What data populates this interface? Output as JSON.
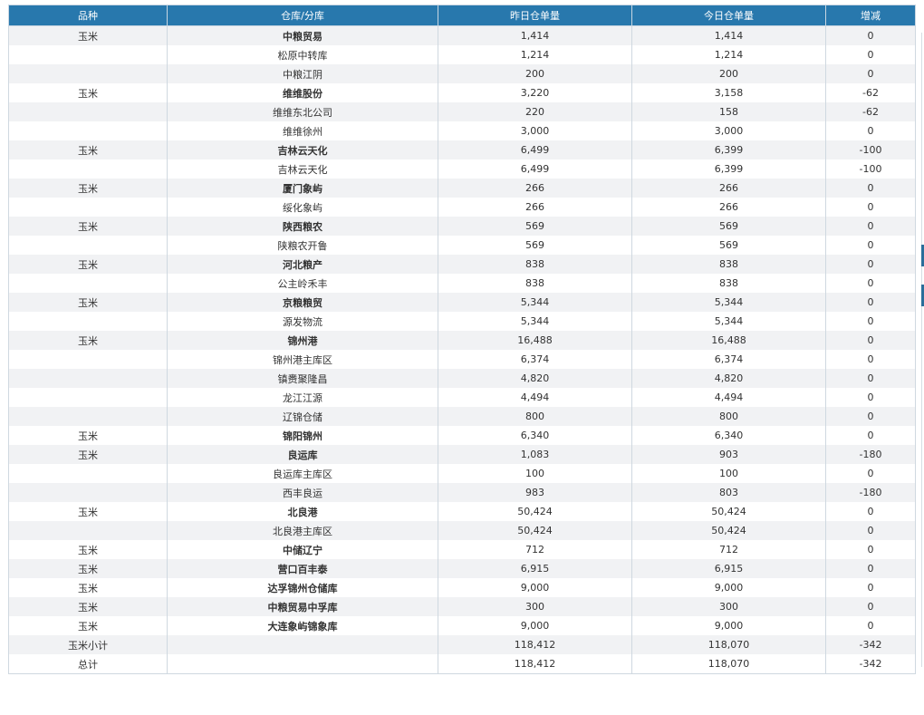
{
  "table": {
    "headers": [
      "品种",
      "仓库/分库",
      "昨日仓单量",
      "今日仓单量",
      "增减"
    ],
    "rows": [
      {
        "variety": "玉米",
        "warehouse": "中粮贸易",
        "yesterday": "1,414",
        "today": "1,414",
        "change": "0",
        "main": true
      },
      {
        "variety": "",
        "warehouse": "松原中转库",
        "yesterday": "1,214",
        "today": "1,214",
        "change": "0",
        "main": false
      },
      {
        "variety": "",
        "warehouse": "中粮江阴",
        "yesterday": "200",
        "today": "200",
        "change": "0",
        "main": false
      },
      {
        "variety": "玉米",
        "warehouse": "维维股份",
        "yesterday": "3,220",
        "today": "3,158",
        "change": "-62",
        "main": true
      },
      {
        "variety": "",
        "warehouse": "维维东北公司",
        "yesterday": "220",
        "today": "158",
        "change": "-62",
        "main": false
      },
      {
        "variety": "",
        "warehouse": "维维徐州",
        "yesterday": "3,000",
        "today": "3,000",
        "change": "0",
        "main": false
      },
      {
        "variety": "玉米",
        "warehouse": "吉林云天化",
        "yesterday": "6,499",
        "today": "6,399",
        "change": "-100",
        "main": true
      },
      {
        "variety": "",
        "warehouse": "吉林云天化",
        "yesterday": "6,499",
        "today": "6,399",
        "change": "-100",
        "main": false
      },
      {
        "variety": "玉米",
        "warehouse": "厦门象屿",
        "yesterday": "266",
        "today": "266",
        "change": "0",
        "main": true
      },
      {
        "variety": "",
        "warehouse": "绥化象屿",
        "yesterday": "266",
        "today": "266",
        "change": "0",
        "main": false
      },
      {
        "variety": "玉米",
        "warehouse": "陕西粮农",
        "yesterday": "569",
        "today": "569",
        "change": "0",
        "main": true
      },
      {
        "variety": "",
        "warehouse": "陕粮农开鲁",
        "yesterday": "569",
        "today": "569",
        "change": "0",
        "main": false
      },
      {
        "variety": "玉米",
        "warehouse": "河北粮产",
        "yesterday": "838",
        "today": "838",
        "change": "0",
        "main": true
      },
      {
        "variety": "",
        "warehouse": "公主岭禾丰",
        "yesterday": "838",
        "today": "838",
        "change": "0",
        "main": false
      },
      {
        "variety": "玉米",
        "warehouse": "京粮粮贸",
        "yesterday": "5,344",
        "today": "5,344",
        "change": "0",
        "main": true
      },
      {
        "variety": "",
        "warehouse": "源发物流",
        "yesterday": "5,344",
        "today": "5,344",
        "change": "0",
        "main": false
      },
      {
        "variety": "玉米",
        "warehouse": "锦州港",
        "yesterday": "16,488",
        "today": "16,488",
        "change": "0",
        "main": true
      },
      {
        "variety": "",
        "warehouse": "锦州港主库区",
        "yesterday": "6,374",
        "today": "6,374",
        "change": "0",
        "main": false
      },
      {
        "variety": "",
        "warehouse": "镇赉聚隆昌",
        "yesterday": "4,820",
        "today": "4,820",
        "change": "0",
        "main": false
      },
      {
        "variety": "",
        "warehouse": "龙江江源",
        "yesterday": "4,494",
        "today": "4,494",
        "change": "0",
        "main": false
      },
      {
        "variety": "",
        "warehouse": "辽锦仓储",
        "yesterday": "800",
        "today": "800",
        "change": "0",
        "main": false
      },
      {
        "variety": "玉米",
        "warehouse": "锦阳锦州",
        "yesterday": "6,340",
        "today": "6,340",
        "change": "0",
        "main": true
      },
      {
        "variety": "玉米",
        "warehouse": "良运库",
        "yesterday": "1,083",
        "today": "903",
        "change": "-180",
        "main": true
      },
      {
        "variety": "",
        "warehouse": "良运库主库区",
        "yesterday": "100",
        "today": "100",
        "change": "0",
        "main": false
      },
      {
        "variety": "",
        "warehouse": "西丰良运",
        "yesterday": "983",
        "today": "803",
        "change": "-180",
        "main": false
      },
      {
        "variety": "玉米",
        "warehouse": "北良港",
        "yesterday": "50,424",
        "today": "50,424",
        "change": "0",
        "main": true
      },
      {
        "variety": "",
        "warehouse": "北良港主库区",
        "yesterday": "50,424",
        "today": "50,424",
        "change": "0",
        "main": false
      },
      {
        "variety": "玉米",
        "warehouse": "中储辽宁",
        "yesterday": "712",
        "today": "712",
        "change": "0",
        "main": true
      },
      {
        "variety": "玉米",
        "warehouse": "营口百丰泰",
        "yesterday": "6,915",
        "today": "6,915",
        "change": "0",
        "main": true
      },
      {
        "variety": "玉米",
        "warehouse": "达孚锦州仓储库",
        "yesterday": "9,000",
        "today": "9,000",
        "change": "0",
        "main": true
      },
      {
        "variety": "玉米",
        "warehouse": "中粮贸易中孚库",
        "yesterday": "300",
        "today": "300",
        "change": "0",
        "main": true
      },
      {
        "variety": "玉米",
        "warehouse": "大连象屿锦象库",
        "yesterday": "9,000",
        "today": "9,000",
        "change": "0",
        "main": true
      },
      {
        "variety": "玉米小计",
        "warehouse": "",
        "yesterday": "118,412",
        "today": "118,070",
        "change": "-342",
        "main": false
      },
      {
        "variety": "总计",
        "warehouse": "",
        "yesterday": "118,412",
        "today": "118,070",
        "change": "-342",
        "main": false
      }
    ]
  },
  "colors": {
    "header_bg": "#2878ad",
    "header_text": "#ffffff",
    "row_odd": "#f1f2f4",
    "row_even": "#ffffff"
  }
}
